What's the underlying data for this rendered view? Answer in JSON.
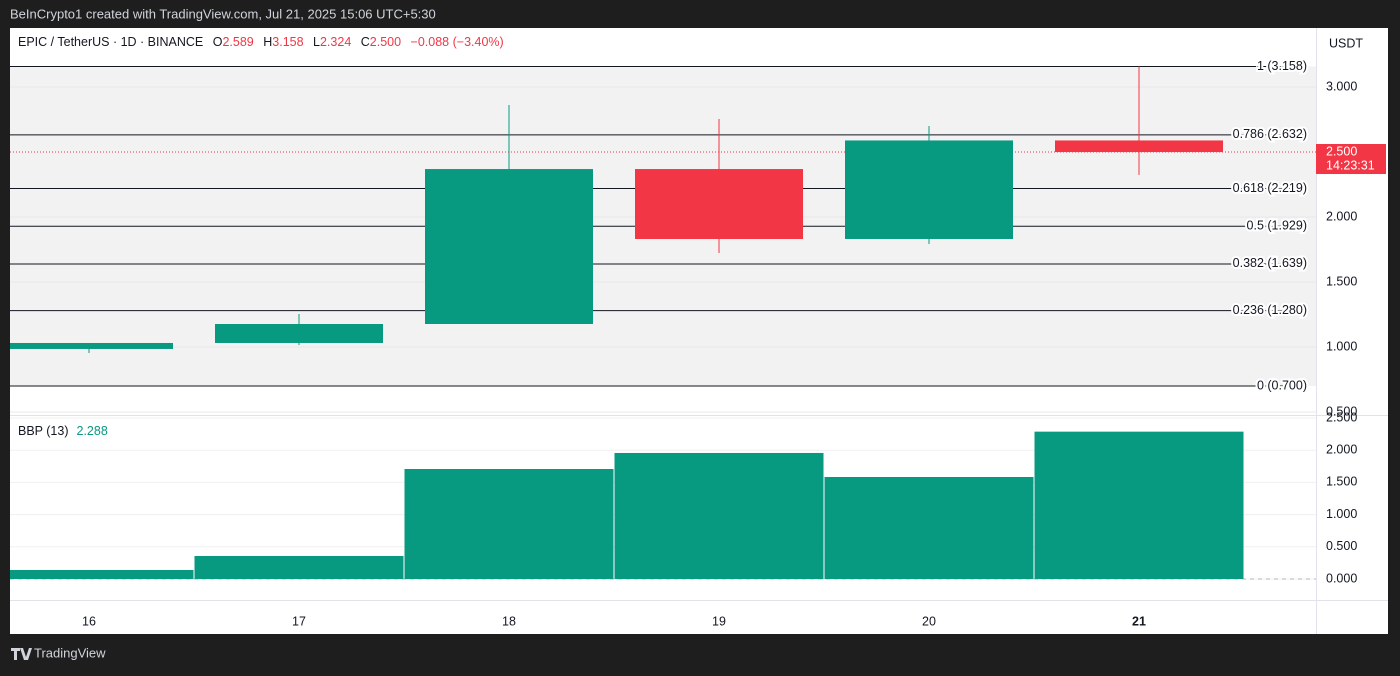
{
  "header": {
    "credit": "BeInCrypto1 created with TradingView.com, Jul 21, 2025 15:06 UTC+5:30",
    "footer": "TradingView"
  },
  "legend": {
    "symbol": "EPIC / TetherUS · 1D · BINANCE",
    "o_label": "O",
    "o": "2.589",
    "h_label": "H",
    "h": "3.158",
    "l_label": "L",
    "l": "2.324",
    "c_label": "C",
    "c": "2.500",
    "change": "−0.088 (−3.40%)"
  },
  "price_tag": {
    "price": "2.500",
    "countdown": "14:23:31"
  },
  "chart_data": [
    {
      "type": "candlestick",
      "currency": "USDT",
      "categories": [
        "16",
        "17",
        "18",
        "19",
        "20",
        "21"
      ],
      "open": [
        0.985,
        1.031,
        1.177,
        2.369,
        1.831,
        2.589
      ],
      "high": [
        1.031,
        1.254,
        2.862,
        2.754,
        2.7,
        3.158
      ],
      "low": [
        0.954,
        1.015,
        1.177,
        1.723,
        1.792,
        2.324
      ],
      "close": [
        1.031,
        1.177,
        2.369,
        1.831,
        2.589,
        2.5
      ],
      "up_color": "#089981",
      "down_color": "#f23645",
      "ylim": [
        0.477,
        3.454
      ],
      "yticks": [
        {
          "value": 3,
          "label": "3.000"
        },
        {
          "value": 2,
          "label": "2.000"
        },
        {
          "value": 1.5,
          "label": "1.500"
        },
        {
          "value": 1,
          "label": "1.000"
        },
        {
          "value": 0.5,
          "label": "0.500"
        }
      ],
      "fib_levels": [
        {
          "value": 3.158,
          "label": "1 (3.158)"
        },
        {
          "value": 2.632,
          "label": "0.786 (2.632)"
        },
        {
          "value": 2.219,
          "label": "0.618 (2.219)"
        },
        {
          "value": 1.929,
          "label": "0.5 (1.929)"
        },
        {
          "value": 1.639,
          "label": "0.382 (1.639)"
        },
        {
          "value": 1.28,
          "label": "0.236 (1.280)"
        },
        {
          "value": 0.7,
          "label": "0 (0.700)"
        }
      ]
    },
    {
      "type": "bar",
      "title": "BBP (13)",
      "last_value_label": "2.288",
      "categories": [
        "16",
        "17",
        "18",
        "19",
        "20",
        "21"
      ],
      "values": [
        0.14,
        0.357,
        1.708,
        1.957,
        1.584,
        2.288
      ],
      "color": "#089981",
      "ylim": [
        -0.326,
        2.531
      ],
      "yticks": [
        {
          "value": 0,
          "label": "0.000"
        },
        {
          "value": 0.5,
          "label": "0.500"
        },
        {
          "value": 1,
          "label": "1.000"
        },
        {
          "value": 1.5,
          "label": "1.500"
        },
        {
          "value": 2,
          "label": "2.000"
        },
        {
          "value": 2.5,
          "label": "2.500"
        }
      ]
    }
  ]
}
